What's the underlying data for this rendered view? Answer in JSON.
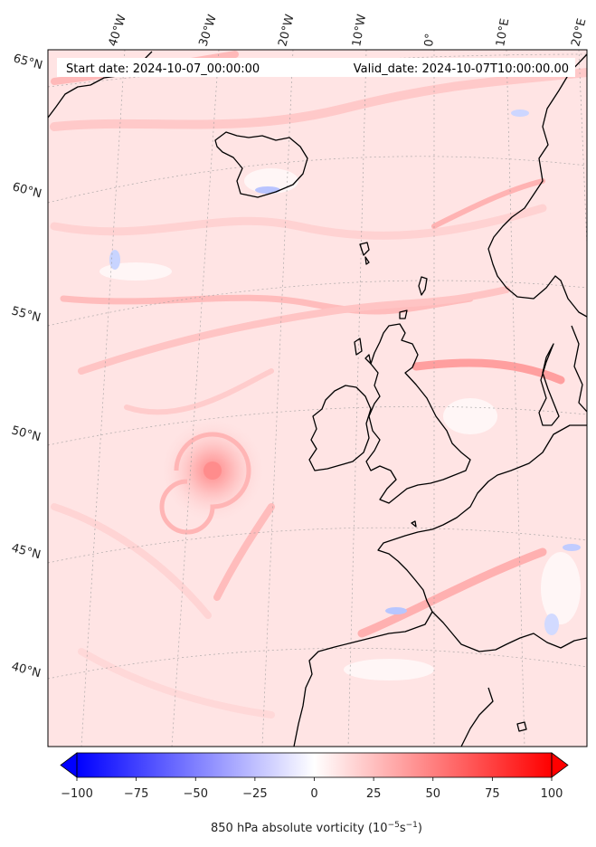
{
  "header": {
    "start_date": "Start date: 2024-10-07_00:00:00",
    "valid_date": "Valid_date: 2024-10-07T10:00:00.00"
  },
  "longitude_labels": [
    "40°W",
    "30°W",
    "20°W",
    "10°W",
    "0°",
    "10°E",
    "20°E"
  ],
  "latitude_labels": [
    "65°N",
    "60°N",
    "55°N",
    "50°N",
    "45°N",
    "40°N"
  ],
  "colorbar": {
    "min": -100,
    "max": 100,
    "ticks": [
      "−100",
      "−75",
      "−50",
      "−25",
      "0",
      "25",
      "50",
      "75",
      "100"
    ],
    "title_main": "850 hPa absolute vorticity (10",
    "title_exp1": "−5",
    "title_mid": "s",
    "title_exp2": "−1",
    "title_end": ")",
    "low_color": "#0000ff",
    "mid_color": "#ffffff",
    "high_color": "#ff0000"
  },
  "map": {
    "background_color": "#ffe6e6",
    "features": [
      "Iceland",
      "Faroe Islands",
      "Shetland",
      "Scotland",
      "Ireland",
      "Great Britain",
      "Norway",
      "Denmark",
      "France",
      "Iberian Peninsula",
      "North Atlantic low pressure vortex"
    ]
  }
}
